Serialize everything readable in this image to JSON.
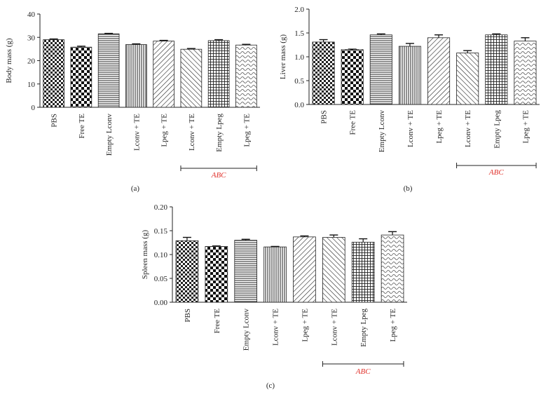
{
  "colors": {
    "abc_text": "#e0312b",
    "bar_stroke": "#222222",
    "axis": "#222222"
  },
  "chart_data": [
    {
      "type": "bar",
      "panel_label": "(a)",
      "ylabel": "Body mass (g)",
      "ylim": [
        0,
        40
      ],
      "yticks": [
        "0",
        "10",
        "20",
        "30",
        "40"
      ],
      "categories": [
        "PBS",
        "Free TE",
        "Empty Lconv",
        "Lconv + TE",
        "Lpeg + TE",
        "Lconv + TE",
        "Empty Lpeg",
        "Lpeg + TE"
      ],
      "values": [
        29.0,
        25.8,
        31.5,
        26.9,
        28.4,
        24.9,
        28.6,
        26.7
      ],
      "errors": [
        0.3,
        0.4,
        0.2,
        0.3,
        0.3,
        0.3,
        0.4,
        0.3
      ],
      "patterns": [
        "checker-small",
        "checker-large",
        "hlines",
        "vlines",
        "diag-right",
        "diag-left",
        "grid",
        "wavy"
      ],
      "bracket_label": "ABC",
      "bracket_from": 5,
      "bracket_to": 7
    },
    {
      "type": "bar",
      "panel_label": "(b)",
      "ylabel": "Liver mass (g)",
      "ylim": [
        0,
        2.0
      ],
      "yticks": [
        "0.0",
        "0.5",
        "1.0",
        "1.5",
        "2.0"
      ],
      "categories": [
        "PBS",
        "Free TE",
        "Empty Lconv",
        "Lconv + TE",
        "Lpeg + TE",
        "Lconv + TE",
        "Empty Lpeg",
        "Lpeg + TE"
      ],
      "values": [
        1.31,
        1.15,
        1.46,
        1.22,
        1.4,
        1.08,
        1.46,
        1.33
      ],
      "errors": [
        0.05,
        0.01,
        0.02,
        0.06,
        0.06,
        0.05,
        0.02,
        0.07
      ],
      "patterns": [
        "checker-small",
        "checker-large",
        "hlines",
        "vlines",
        "diag-right",
        "diag-left",
        "grid",
        "wavy"
      ],
      "bracket_label": "ABC",
      "bracket_from": 5,
      "bracket_to": 7
    },
    {
      "type": "bar",
      "panel_label": "(c)",
      "ylabel": "Spleen mass (g)",
      "ylim": [
        0,
        0.2
      ],
      "yticks": [
        "0.00",
        "0.05",
        "0.10",
        "0.15",
        "0.20"
      ],
      "categories": [
        "PBS",
        "Free TE",
        "Empty Lconv",
        "Lconv + TE",
        "Lpeg + TE",
        "Lconv + TE",
        "Empty Lpeg",
        "Lpeg + TE"
      ],
      "values": [
        0.129,
        0.117,
        0.13,
        0.116,
        0.137,
        0.136,
        0.126,
        0.141
      ],
      "errors": [
        0.007,
        0.001,
        0.002,
        0.001,
        0.002,
        0.005,
        0.007,
        0.007
      ],
      "patterns": [
        "checker-small",
        "checker-large",
        "hlines",
        "vlines",
        "diag-right",
        "diag-left",
        "grid",
        "wavy"
      ],
      "bracket_label": "ABC",
      "bracket_from": 5,
      "bracket_to": 7
    }
  ]
}
